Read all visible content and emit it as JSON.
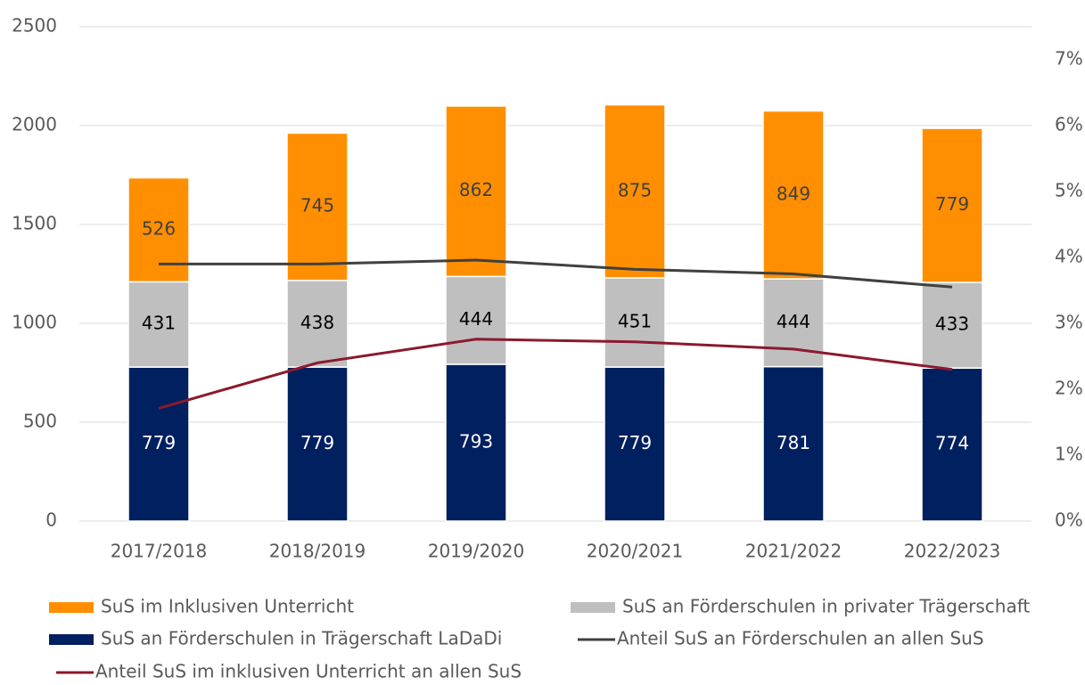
{
  "chart_data": {
    "type": "bar",
    "stacked": true,
    "categories": [
      "2017/2018",
      "2018/2019",
      "2019/2020",
      "2020/2021",
      "2021/2022",
      "2022/2023"
    ],
    "series": [
      {
        "name": "SuS im Inklusiven Unterricht",
        "type": "bar",
        "color": "#ff8f00",
        "label_color": "#404040",
        "values": [
          526,
          745,
          862,
          875,
          849,
          779
        ]
      },
      {
        "name": "SuS an Förderschulen in privater Trägerschaft",
        "type": "bar",
        "color": "#bfbfbf",
        "label_color": "#000000",
        "values": [
          431,
          438,
          444,
          451,
          444,
          433
        ]
      },
      {
        "name": "SuS an Förderschulen in Trägerschaft LaDaDi",
        "type": "bar",
        "color": "#002060",
        "label_color": "#ffffff",
        "values": [
          779,
          779,
          793,
          779,
          781,
          774
        ]
      },
      {
        "name": "Anteil SuS an Förderschulen an allen SuS",
        "type": "line",
        "axis": "y2",
        "color": "#404040",
        "values": [
          3.9,
          3.9,
          3.96,
          3.82,
          3.75,
          3.55
        ]
      },
      {
        "name": "Anteil SuS im inklusiven Unterricht an allen SuS",
        "type": "line",
        "axis": "y2",
        "color": "#8b1a2e",
        "values": [
          1.71,
          2.4,
          2.76,
          2.72,
          2.61,
          2.3
        ]
      }
    ],
    "ylim": [
      0,
      2500
    ],
    "yticks": [
      0,
      500,
      1000,
      1500,
      2000,
      2500
    ],
    "y2lim": [
      0,
      7.5
    ],
    "y2ticks": [
      {
        "value": 0,
        "label": "0%"
      },
      {
        "value": 1,
        "label": "1%"
      },
      {
        "value": 2,
        "label": "2%"
      },
      {
        "value": 3,
        "label": "3%"
      },
      {
        "value": 4,
        "label": "4%"
      },
      {
        "value": 5,
        "label": "5%"
      },
      {
        "value": 6,
        "label": "6%"
      },
      {
        "value": 7,
        "label": "7%"
      }
    ],
    "grid": true,
    "legend": "bottom"
  }
}
